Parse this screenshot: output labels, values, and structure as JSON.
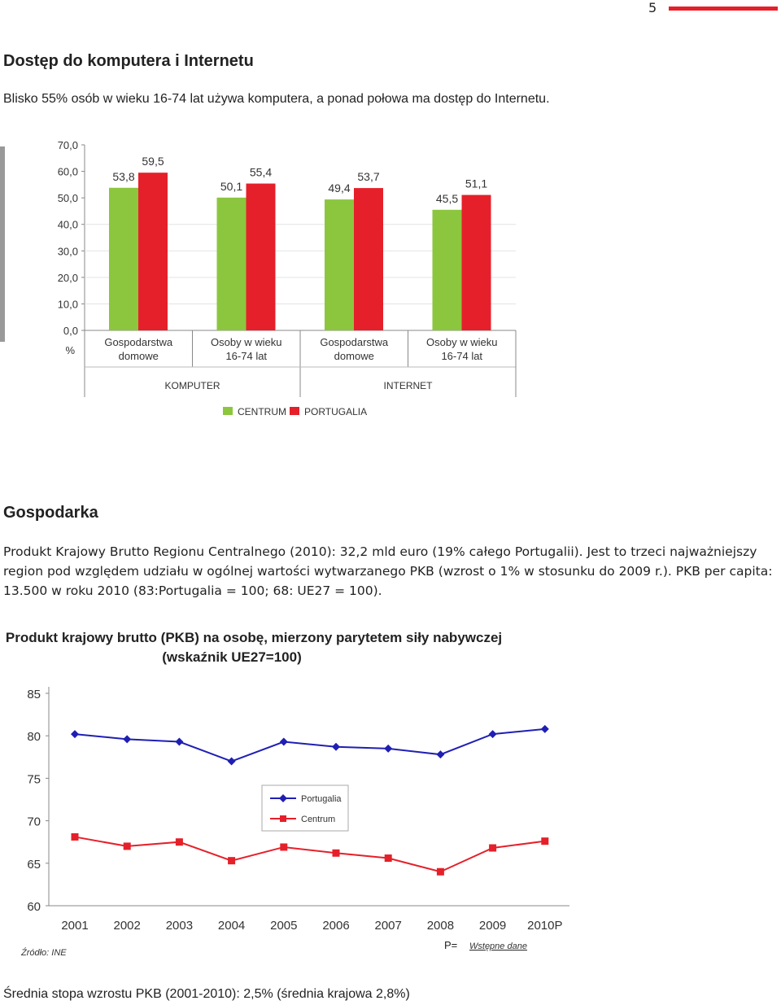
{
  "page_number": "5",
  "section1": {
    "heading": "Dostęp do komputera i Internetu",
    "text": "Blisko 55% osób w wieku 16-74 lat używa komputera, a ponad połowa ma dostęp do Internetu."
  },
  "section2": {
    "heading": "Gospodarka",
    "text": "Produkt Krajowy Brutto Regionu Centralnego (2010): 32,2 mld euro (19% całego Portugalii). Jest to trzeci najważniejszy region pod względem udziału w ogólnej wartości wytwarzanego PKB (wzrost o 1% w stosunku do 2009 r.). PKB per capita: 13.500 w roku 2010 (83:Portugalia = 100; 68: UE27 = 100)."
  },
  "footer_text": "Średnia stopa wzrostu PKB (2001-2010): 2,5% (średnia krajowa 2,8%)",
  "colors": {
    "centrum": "#8cc63f",
    "portugalia": "#e5202a",
    "line_portugalia": "#1f1fb4",
    "line_centrum": "#e5202a",
    "accent": "#e5202a"
  },
  "chart_data": [
    {
      "type": "bar",
      "yunit": "%",
      "ylim": [
        0,
        70
      ],
      "yticks": [
        "70,0",
        "60,0",
        "50,0",
        "40,0",
        "30,0",
        "20,0",
        "10,0",
        "0,0"
      ],
      "groups": [
        "KOMPUTER",
        "INTERNET"
      ],
      "categories": [
        "Gospodarstwa domowe",
        "Osoby w wieku 16-74 lat",
        "Gospodarstwa domowe",
        "Osoby w wieku 16-74 lat"
      ],
      "series": [
        {
          "name": "CENTRUM",
          "values": [
            53.8,
            50.1,
            49.4,
            45.5
          ],
          "labels": [
            "53,8",
            "50,1",
            "49,4",
            "45,5"
          ]
        },
        {
          "name": "PORTUGALIA",
          "values": [
            59.5,
            55.4,
            53.7,
            51.1
          ],
          "labels": [
            "59,5",
            "55,4",
            "53,7",
            "51,1"
          ]
        }
      ]
    },
    {
      "type": "line",
      "title": "Produkt krajowy brutto (PKB) na osobę, mierzony parytetem siły nabywczej",
      "subtitle": "(wskaźnik UE27=100)",
      "x": [
        "2001",
        "2002",
        "2003",
        "2004",
        "2005",
        "2006",
        "2007",
        "2008",
        "2009",
        "2010P"
      ],
      "ylim": [
        60,
        85
      ],
      "yticks": [
        "85",
        "80",
        "75",
        "70",
        "65",
        "60"
      ],
      "series": [
        {
          "name": "Portugalia",
          "values": [
            80.2,
            79.6,
            79.3,
            77.0,
            79.3,
            78.7,
            78.5,
            77.8,
            80.2,
            80.8
          ]
        },
        {
          "name": "Centrum",
          "values": [
            68.1,
            67.0,
            67.5,
            65.3,
            66.9,
            66.2,
            65.6,
            64.0,
            66.8,
            67.6
          ]
        }
      ],
      "source": "Źródło: INE",
      "note_symbol": "P=",
      "note_text": "Wstępne dane"
    }
  ]
}
